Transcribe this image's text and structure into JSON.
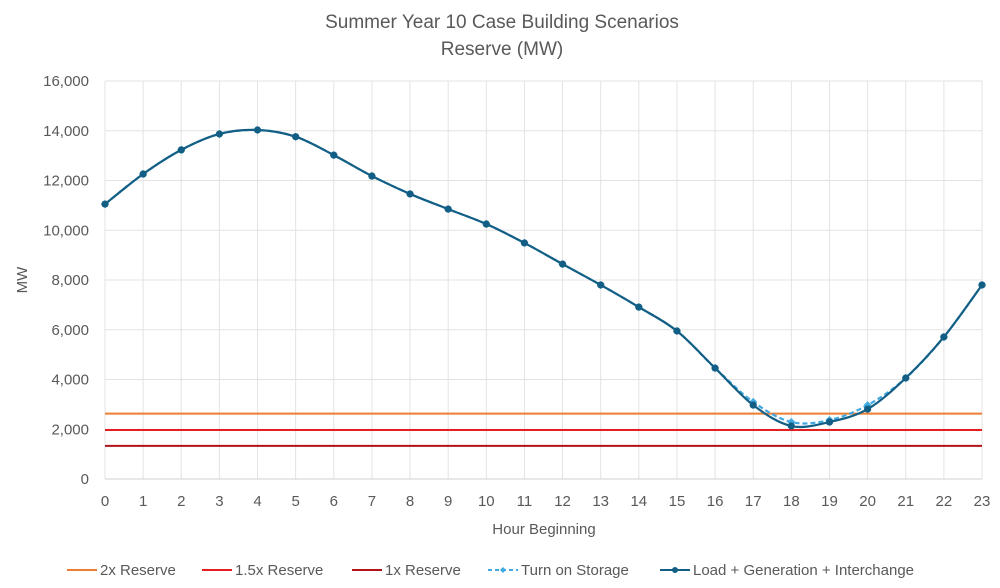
{
  "chart_data": {
    "type": "line",
    "title": "Summer Year 10 Case Building Scenarios",
    "subtitle": "Reserve (MW)",
    "xlabel": "Hour Beginning",
    "ylabel": "MW",
    "ylim": [
      0,
      16000
    ],
    "yticks": [
      0,
      2000,
      4000,
      6000,
      8000,
      10000,
      12000,
      14000,
      16000
    ],
    "ytick_labels": [
      "0",
      "2,000",
      "4,000",
      "6,000",
      "8,000",
      "10,000",
      "12,000",
      "14,000",
      "16,000"
    ],
    "x": [
      0,
      1,
      2,
      3,
      4,
      5,
      6,
      7,
      8,
      9,
      10,
      11,
      12,
      13,
      14,
      15,
      16,
      17,
      18,
      19,
      20,
      21,
      22,
      23
    ],
    "grid": true,
    "legend_position": "bottom",
    "series": [
      {
        "name": "2x Reserve",
        "color": "#ED7D31",
        "style": "solid",
        "markers": false,
        "values": [
          2630,
          2630,
          2630,
          2630,
          2630,
          2630,
          2630,
          2630,
          2630,
          2630,
          2630,
          2630,
          2630,
          2630,
          2630,
          2630,
          2630,
          2630,
          2630,
          2630,
          2630,
          2630,
          2630,
          2630
        ]
      },
      {
        "name": "1.5x Reserve",
        "color": "#E51F1F",
        "style": "solid",
        "markers": false,
        "values": [
          1970,
          1970,
          1970,
          1970,
          1970,
          1970,
          1970,
          1970,
          1970,
          1970,
          1970,
          1970,
          1970,
          1970,
          1970,
          1970,
          1970,
          1970,
          1970,
          1970,
          1970,
          1970,
          1970,
          1970
        ]
      },
      {
        "name": "1x Reserve",
        "color": "#B3121B",
        "style": "solid",
        "markers": false,
        "values": [
          1330,
          1330,
          1330,
          1330,
          1330,
          1330,
          1330,
          1330,
          1330,
          1330,
          1330,
          1330,
          1330,
          1330,
          1330,
          1330,
          1330,
          1330,
          1330,
          1330,
          1330,
          1330,
          1330,
          1330
        ]
      },
      {
        "name": "Turn on Storage",
        "color": "#3FA9E0",
        "style": "dashed",
        "markers": true,
        "values": [
          11050,
          12260,
          13230,
          13870,
          14030,
          13760,
          13020,
          12180,
          11460,
          10850,
          10250,
          9490,
          8640,
          7800,
          6910,
          5950,
          4460,
          3100,
          2290,
          2370,
          2970,
          4060,
          5710,
          7800
        ]
      },
      {
        "name": "Load + Generation + Interchange",
        "color": "#135E84",
        "style": "solid",
        "markers": true,
        "values": [
          11050,
          12260,
          13230,
          13870,
          14030,
          13760,
          13020,
          12180,
          11460,
          10850,
          10250,
          9490,
          8640,
          7800,
          6910,
          5950,
          4460,
          2970,
          2130,
          2290,
          2810,
          4060,
          5710,
          7800
        ]
      }
    ]
  }
}
